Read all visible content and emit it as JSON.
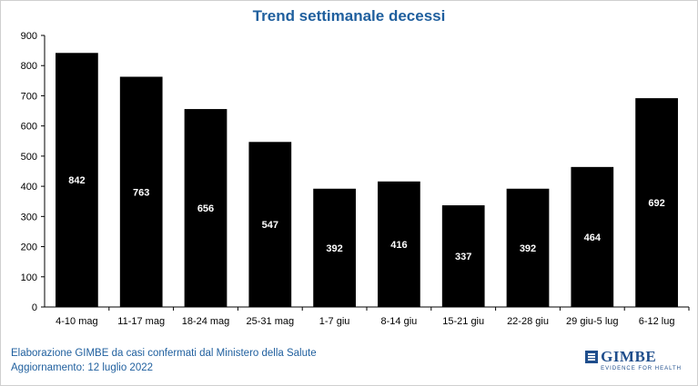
{
  "chart_data": {
    "type": "bar",
    "title": "Trend settimanale decessi",
    "categories": [
      "4-10 mag",
      "11-17 mag",
      "18-24 mag",
      "25-31 mag",
      "1-7 giu",
      "8-14 giu",
      "15-21 giu",
      "22-28 giu",
      "29 giu-5 lug",
      "6-12 lug"
    ],
    "values": [
      842,
      763,
      656,
      547,
      392,
      416,
      337,
      392,
      464,
      692
    ],
    "data_labels": [
      "842",
      "763",
      "656",
      "547",
      "392",
      "416",
      "337",
      "392",
      "464",
      "692"
    ],
    "yticks": [
      "0",
      "100",
      "200",
      "300",
      "400",
      "500",
      "600",
      "700",
      "800",
      "900"
    ],
    "ylim": [
      0,
      900
    ],
    "xlabel": "",
    "ylabel": "",
    "grid": false,
    "bar_color": "#000000",
    "label_color": "#ffffff",
    "title_color": "#1f5f9e"
  },
  "footer": {
    "line1": "Elaborazione GIMBE da casi confermati dal Ministero della Salute",
    "line2": "Aggiornamento: 12 luglio 2022"
  },
  "logo": {
    "name": "GIMBE",
    "tagline": "EVIDENCE FOR HEALTH",
    "color": "#1f4e8c"
  }
}
